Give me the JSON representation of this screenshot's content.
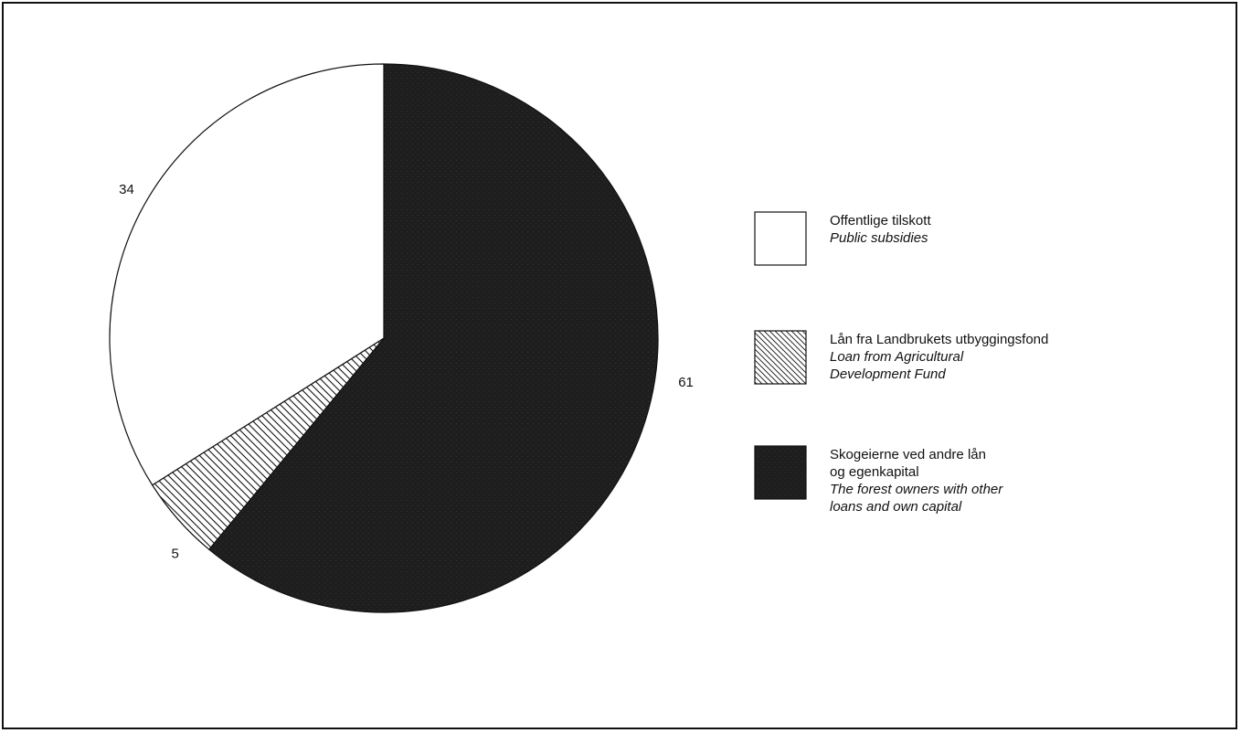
{
  "chart_data": {
    "type": "pie",
    "title": "",
    "slices": [
      {
        "value": 61,
        "label": "61",
        "fill": "dark-stipple",
        "legend_index": 2
      },
      {
        "value": 5,
        "label": "5",
        "fill": "hatch",
        "legend_index": 1
      },
      {
        "value": 34,
        "label": "34",
        "fill": "white",
        "legend_index": 0
      }
    ],
    "start": "12 o'clock",
    "direction": "clockwise",
    "legend": {
      "placement": "right",
      "entries": [
        {
          "norwegian": [
            "Offentlige tilskott"
          ],
          "english": [
            "Public subsidies"
          ],
          "fill": "white"
        },
        {
          "norwegian": [
            "Lån fra Landbrukets utbyggingsfond"
          ],
          "english": [
            "Loan from Agricultural",
            "Development Fund"
          ],
          "fill": "hatch"
        },
        {
          "norwegian": [
            "Skogeierne ved andre lån",
            "og egenkapital"
          ],
          "english": [
            "The forest owners with other",
            "loans and own capital"
          ],
          "fill": "dark-stipple"
        }
      ]
    },
    "colors": {
      "dark": "#1e1e1e",
      "outline": "#111111",
      "white": "#ffffff"
    }
  }
}
